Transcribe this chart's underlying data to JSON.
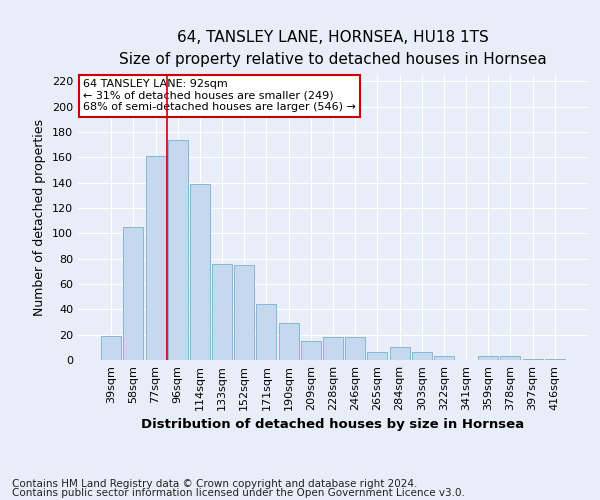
{
  "title": "64, TANSLEY LANE, HORNSEA, HU18 1TS",
  "subtitle": "Size of property relative to detached houses in Hornsea",
  "xlabel": "Distribution of detached houses by size in Hornsea",
  "ylabel": "Number of detached properties",
  "categories": [
    "39sqm",
    "58sqm",
    "77sqm",
    "96sqm",
    "114sqm",
    "133sqm",
    "152sqm",
    "171sqm",
    "190sqm",
    "209sqm",
    "228sqm",
    "246sqm",
    "265sqm",
    "284sqm",
    "303sqm",
    "322sqm",
    "341sqm",
    "359sqm",
    "378sqm",
    "397sqm",
    "416sqm"
  ],
  "values": [
    19,
    105,
    161,
    174,
    139,
    76,
    75,
    44,
    29,
    15,
    18,
    18,
    6,
    10,
    6,
    3,
    0,
    3,
    3,
    1,
    1
  ],
  "bar_color": "#c5d8ed",
  "bar_edge_color": "#7bafd4",
  "vline_color": "#cc0000",
  "vline_x": 2.5,
  "annotation_text": "64 TANSLEY LANE: 92sqm\n← 31% of detached houses are smaller (249)\n68% of semi-detached houses are larger (546) →",
  "annotation_box_facecolor": "white",
  "annotation_box_edgecolor": "#cc0000",
  "background_color": "#e8eef8",
  "grid_color": "white",
  "footer_line1": "Contains HM Land Registry data © Crown copyright and database right 2024.",
  "footer_line2": "Contains public sector information licensed under the Open Government Licence v3.0.",
  "ylim": [
    0,
    225
  ],
  "yticks": [
    0,
    20,
    40,
    60,
    80,
    100,
    120,
    140,
    160,
    180,
    200,
    220
  ],
  "title_fontsize": 11,
  "subtitle_fontsize": 9.5,
  "ylabel_fontsize": 9,
  "xlabel_fontsize": 9.5,
  "tick_fontsize": 8,
  "annotation_fontsize": 8,
  "footer_fontsize": 7.5
}
